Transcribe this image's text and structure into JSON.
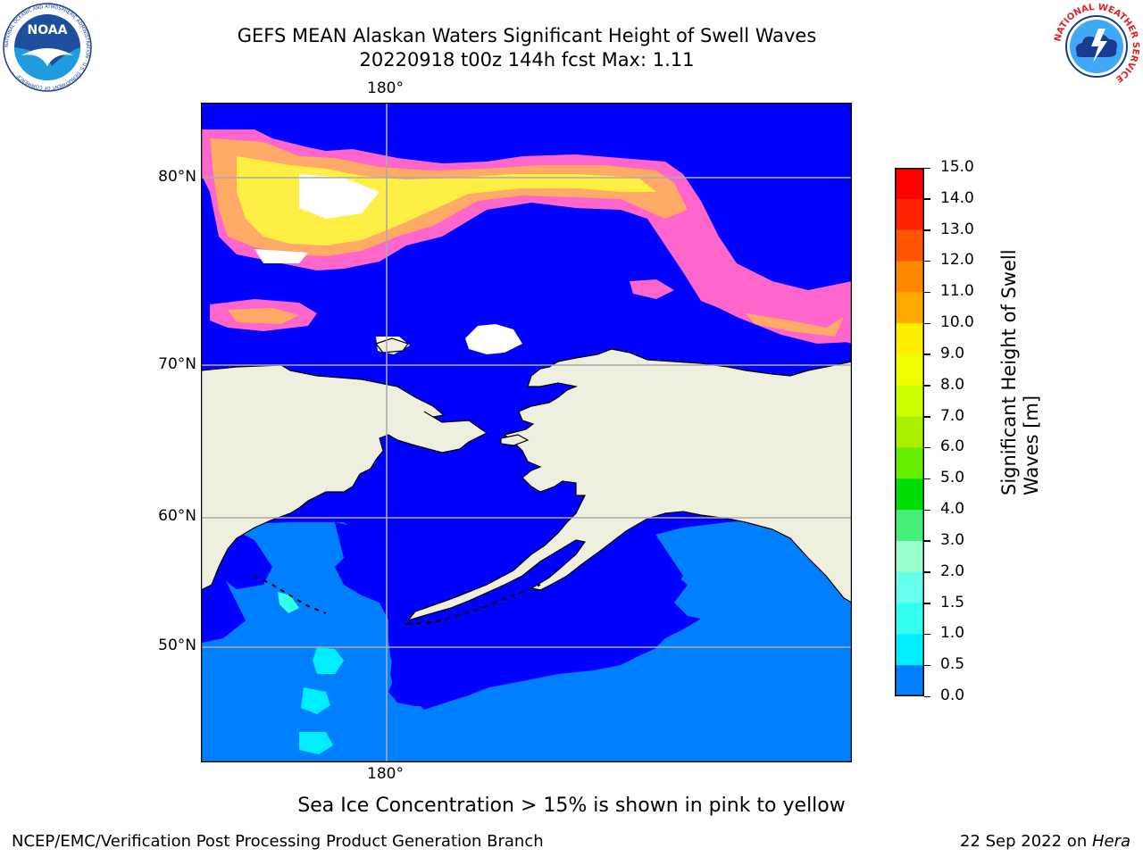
{
  "header": {
    "title_line1": "GEFS MEAN Alaskan Waters Significant Height of Swell Waves",
    "title_line2": "20220918 t00z 144h fcst   Max: 1.11"
  },
  "logos": {
    "noaa_text": "NOAA",
    "noaa_ring_text": "NATIONAL OCEANIC AND ATMOSPHERIC ADMINISTRATION · U.S. DEPARTMENT OF COMMERCE",
    "nws_ring_text": "NATIONAL WEATHER SERVICE"
  },
  "map": {
    "lon_label_top": "180°",
    "lon_label_bottom": "180°",
    "lat_labels": [
      "80°N",
      "70°N",
      "60°N",
      "50°N"
    ],
    "caption": "Sea Ice Concentration > 15% is shown in pink to yellow"
  },
  "colorbar": {
    "label_line1": "Significant Height of Swell",
    "label_line2": "Waves [m]",
    "ticks": [
      "15.0",
      "14.0",
      "13.0",
      "12.0",
      "11.0",
      "10.0",
      "9.0",
      "8.0",
      "7.0",
      "6.0",
      "5.0",
      "4.0",
      "3.0",
      "2.0",
      "1.5",
      "1.0",
      "0.5",
      "0.0"
    ],
    "colors": [
      "#ff0000",
      "#ff2200",
      "#ff5500",
      "#ff8800",
      "#ffaa00",
      "#ffee00",
      "#f0ff00",
      "#ccff00",
      "#aaee00",
      "#66ee00",
      "#00dd00",
      "#44ee77",
      "#99ffcc",
      "#66ffee",
      "#33ffee",
      "#00eeff",
      "#0080ff",
      "#0000ff"
    ]
  },
  "footer": {
    "left": "NCEP/EMC/Verification Post Processing Product Generation Branch",
    "right_date": "22 Sep 2022 on ",
    "right_host": "Hera"
  }
}
